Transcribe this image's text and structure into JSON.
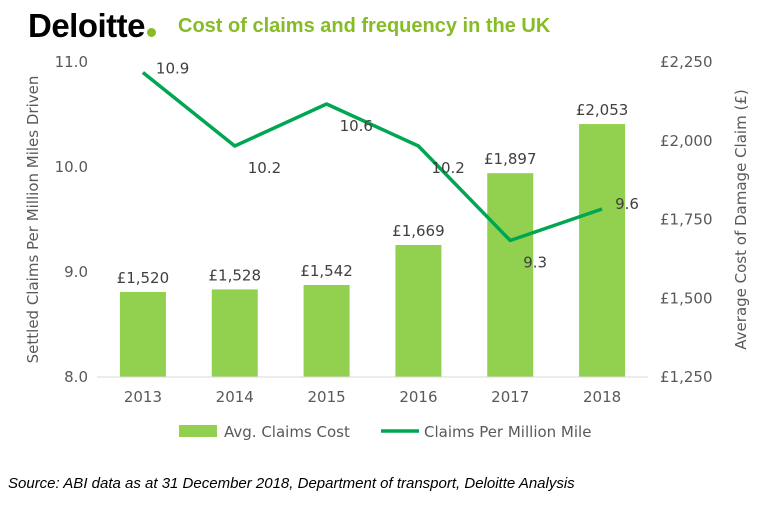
{
  "brand": {
    "name": "Deloitte"
  },
  "source_note": "Source: ABI data as at 31 December 2018, Department of transport, Deloitte Analysis",
  "colors": {
    "bar": "#92d050",
    "line": "#00a651",
    "brand_green": "#86bc25",
    "axis_text": "#595959"
  },
  "chart_data": {
    "type": "bar+line",
    "title": "Cost of claims and frequency in the UK",
    "categories": [
      "2013",
      "2014",
      "2015",
      "2016",
      "2017",
      "2018"
    ],
    "series": [
      {
        "name": "Avg. Claims Cost",
        "type": "bar",
        "axis": "right",
        "values": [
          1520,
          1528,
          1542,
          1669,
          1897,
          2053
        ],
        "labels": [
          "£1,520",
          "£1,528",
          "£1,542",
          "£1,669",
          "£1,897",
          "£2,053"
        ]
      },
      {
        "name": "Claims Per Million Mile",
        "type": "line",
        "axis": "left",
        "values": [
          10.9,
          10.2,
          10.6,
          10.2,
          9.3,
          9.6
        ],
        "labels": [
          "10.9",
          "10.2",
          "10.6",
          "10.2",
          "9.3",
          "9.6"
        ]
      }
    ],
    "left_axis": {
      "label": "Settled Claims Per Million Miles Driven",
      "ylim": [
        8.0,
        11.0
      ],
      "ticks": [
        "8.0",
        "9.0",
        "10.0",
        "11.0"
      ]
    },
    "right_axis": {
      "label": "Average Cost of Damage Claim (£)",
      "ylim": [
        1250,
        2250
      ],
      "ticks": [
        "£1,250",
        "£1,500",
        "£1,750",
        "£2,000",
        "£2,250"
      ]
    },
    "grid": false,
    "legend": "bottom"
  }
}
